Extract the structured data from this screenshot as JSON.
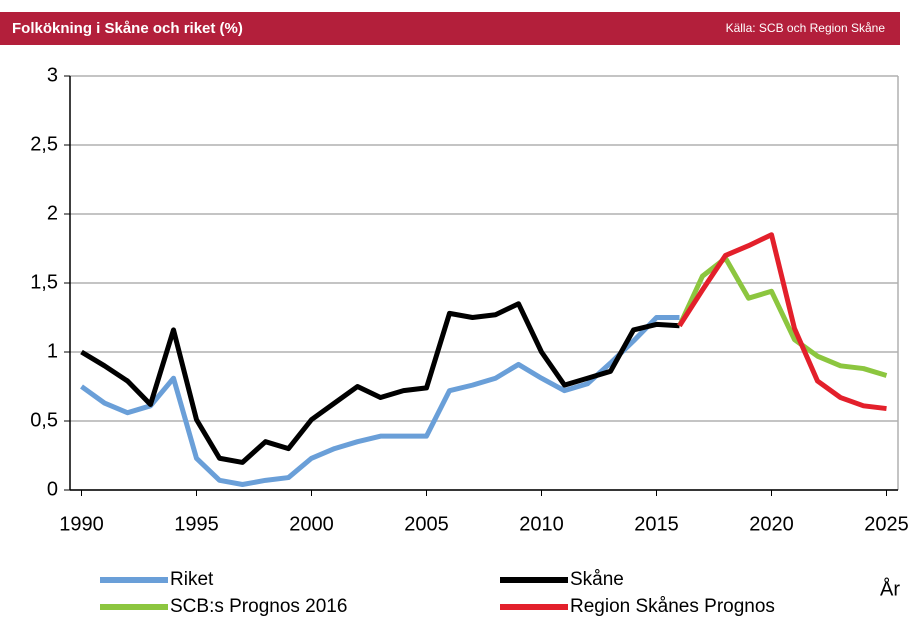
{
  "chart_data": {
    "type": "line",
    "title": "Folkökning i Skåne och riket (%)",
    "source": "Källa: SCB och Region Skåne",
    "x_label": "År",
    "x": [
      1990,
      1991,
      1992,
      1993,
      1994,
      1995,
      1996,
      1997,
      1998,
      1999,
      2000,
      2001,
      2002,
      2003,
      2004,
      2005,
      2006,
      2007,
      2008,
      2009,
      2010,
      2011,
      2012,
      2013,
      2014,
      2015,
      2016,
      2017,
      2018,
      2019,
      2020,
      2021,
      2022,
      2023,
      2024,
      2025
    ],
    "series": [
      {
        "name": "Riket",
        "color": "#6a9fd8",
        "values": [
          0.75,
          0.63,
          0.56,
          0.61,
          0.81,
          0.23,
          0.07,
          0.04,
          0.07,
          0.09,
          0.23,
          0.3,
          0.35,
          0.39,
          0.39,
          0.39,
          0.72,
          0.76,
          0.81,
          0.91,
          0.81,
          0.72,
          0.77,
          0.92,
          1.08,
          1.25,
          1.25,
          null,
          null,
          null,
          null,
          null,
          null,
          null,
          null,
          null
        ]
      },
      {
        "name": "Skåne",
        "color": "#000000",
        "values": [
          1.0,
          0.9,
          0.79,
          0.62,
          1.16,
          0.51,
          0.23,
          0.2,
          0.35,
          0.3,
          0.51,
          0.63,
          0.75,
          0.67,
          0.72,
          0.74,
          1.28,
          1.25,
          1.27,
          1.35,
          1.0,
          0.76,
          0.81,
          0.86,
          1.16,
          1.2,
          1.19,
          null,
          null,
          null,
          null,
          null,
          null,
          null,
          null,
          null
        ]
      },
      {
        "name": "SCB:s Prognos 2016",
        "color": "#8cc63f",
        "values": [
          null,
          null,
          null,
          null,
          null,
          null,
          null,
          null,
          null,
          null,
          null,
          null,
          null,
          null,
          null,
          null,
          null,
          null,
          null,
          null,
          null,
          null,
          null,
          null,
          null,
          null,
          1.19,
          1.55,
          1.68,
          1.39,
          1.44,
          1.09,
          0.97,
          0.9,
          0.88,
          0.83
        ]
      },
      {
        "name": "Region Skånes Prognos",
        "color": "#e3202b",
        "values": [
          null,
          null,
          null,
          null,
          null,
          null,
          null,
          null,
          null,
          null,
          null,
          null,
          null,
          null,
          null,
          null,
          null,
          null,
          null,
          null,
          null,
          null,
          null,
          null,
          null,
          null,
          1.19,
          1.45,
          1.7,
          1.77,
          1.85,
          1.17,
          0.79,
          0.67,
          0.61,
          0.59
        ]
      }
    ],
    "xlim": [
      1989.5,
      2025.5
    ],
    "xticks": [
      1990,
      1995,
      2000,
      2005,
      2010,
      2015,
      2020,
      2025
    ],
    "ylim": [
      0,
      3
    ],
    "yticks": [
      0,
      {
        "value": 0.5,
        "label": "0,5"
      },
      1,
      {
        "value": 1.5,
        "label": "1,5"
      },
      2,
      {
        "value": 2.5,
        "label": "2,5"
      },
      3
    ],
    "grid": true
  }
}
